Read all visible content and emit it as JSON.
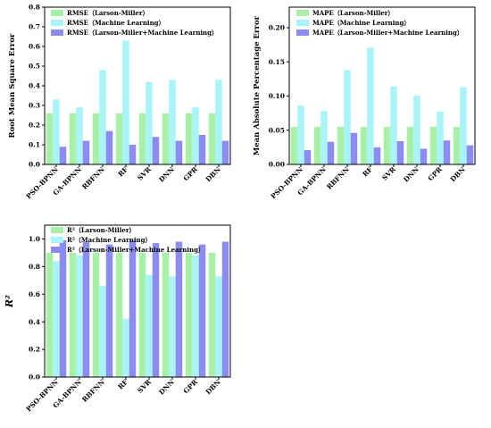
{
  "colors": {
    "larson": "#a8f0a8",
    "ml": "#a8f4f8",
    "combined": "#8c8cf0",
    "axis": "#000000"
  },
  "chart_data": [
    {
      "type": "bar",
      "ylabel": "Root Mean Square Error",
      "ylim": [
        0,
        0.8
      ],
      "yticks": [
        "0.0",
        "0.1",
        "0.2",
        "0.3",
        "0.4",
        "0.5",
        "0.6",
        "0.7",
        "0.8"
      ],
      "categories": [
        "PSO-BPNN",
        "GA-BPNN",
        "RBFNN",
        "RF",
        "SVR",
        "DNN",
        "GPR",
        "DBN"
      ],
      "legend_position": "top-left",
      "series": [
        {
          "name": "RMSE（Larson-Miller）",
          "key": "larson",
          "values": [
            0.26,
            0.26,
            0.26,
            0.26,
            0.26,
            0.26,
            0.26,
            0.26
          ]
        },
        {
          "name": "RMSE（Machine Learning）",
          "key": "ml",
          "values": [
            0.33,
            0.29,
            0.48,
            0.63,
            0.42,
            0.43,
            0.29,
            0.43
          ]
        },
        {
          "name": "RMSE（Larson-Miller+Machine Learning）",
          "key": "combined",
          "values": [
            0.09,
            0.12,
            0.17,
            0.1,
            0.14,
            0.12,
            0.15,
            0.12
          ]
        }
      ]
    },
    {
      "type": "bar",
      "ylabel": "Mean Absolute Percentage Error",
      "ylim": [
        0,
        0.23
      ],
      "yticks": [
        "0.00",
        "0.05",
        "0.10",
        "0.15",
        "0.20"
      ],
      "categories": [
        "PSO-BPNN",
        "GA-BPNN",
        "RBFNN",
        "RF",
        "SVR",
        "DNN",
        "GPR",
        "DBN"
      ],
      "legend_position": "top-left",
      "series": [
        {
          "name": "MAPE（Larson-Miller）",
          "key": "larson",
          "values": [
            0.055,
            0.055,
            0.055,
            0.055,
            0.055,
            0.055,
            0.055,
            0.055
          ]
        },
        {
          "name": "MAPE（Machine Learning）",
          "key": "ml",
          "values": [
            0.086,
            0.078,
            0.138,
            0.171,
            0.114,
            0.101,
            0.077,
            0.113
          ]
        },
        {
          "name": "MAPE（Larson-Miller+Machine Learning）",
          "key": "combined",
          "values": [
            0.021,
            0.033,
            0.046,
            0.025,
            0.034,
            0.023,
            0.035,
            0.028
          ]
        }
      ]
    },
    {
      "type": "bar",
      "ylabel": "R²",
      "ylim": [
        0,
        1.1
      ],
      "yticks": [
        "0.0",
        "0.2",
        "0.4",
        "0.6",
        "0.8",
        "1.0"
      ],
      "categories": [
        "PSO-BPNN",
        "GA-BPNN",
        "RBFNN",
        "RF",
        "SVR",
        "DNN",
        "GPR",
        "DBN"
      ],
      "legend_position": "top-left",
      "series": [
        {
          "name": "R²（Larson-Miller）",
          "key": "larson",
          "values": [
            0.9,
            0.9,
            0.9,
            0.9,
            0.9,
            0.9,
            0.9,
            0.9
          ]
        },
        {
          "name": "R²（Machine Learning）",
          "key": "ml",
          "values": [
            0.84,
            0.88,
            0.66,
            0.42,
            0.74,
            0.73,
            0.88,
            0.73
          ]
        },
        {
          "name": "R²（Larson-Miller+Machine Learning）",
          "key": "combined",
          "values": [
            0.99,
            0.98,
            0.96,
            0.99,
            0.97,
            0.98,
            0.96,
            0.98
          ]
        }
      ]
    }
  ]
}
